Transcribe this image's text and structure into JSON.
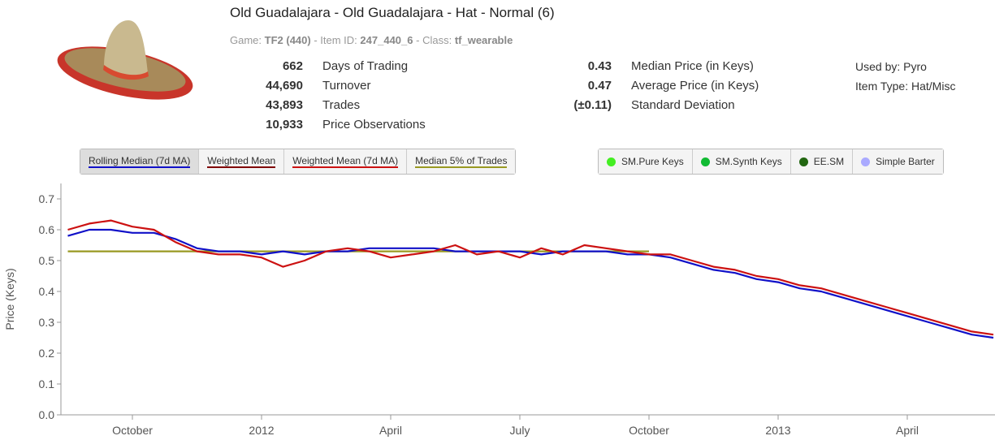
{
  "header": {
    "title": "Old Guadalajara - Old Guadalajara - Hat - Normal (6)",
    "meta": [
      {
        "label": "Game:",
        "value": "TF2 (440)"
      },
      {
        "label": "- Item ID:",
        "value": "247_440_6"
      },
      {
        "label": "- Class:",
        "value": "tf_wearable"
      }
    ]
  },
  "stats": {
    "left": [
      {
        "value": "662",
        "label": "Days of Trading"
      },
      {
        "value": "44,690",
        "label": "Turnover"
      },
      {
        "value": "43,893",
        "label": "Trades"
      },
      {
        "value": "10,933",
        "label": "Price Observations"
      }
    ],
    "middle": [
      {
        "value": "0.43",
        "label": "Median Price (in Keys)"
      },
      {
        "value": "0.47",
        "label": "Average Price (in Keys)"
      },
      {
        "value": "(±0.11)",
        "label": "Standard Deviation"
      }
    ],
    "right": [
      "Used by: Pyro",
      "Item Type: Hat/Misc"
    ]
  },
  "sources": [
    {
      "name": "SM.Pure Keys",
      "color": "#44ee22"
    },
    {
      "name": "SM.Synth Keys",
      "color": "#11bb33"
    },
    {
      "name": "EE.SM",
      "color": "#226611"
    },
    {
      "name": "Simple Barter",
      "color": "#aaaaff"
    }
  ],
  "chart_data": {
    "type": "line",
    "y_label": "Price (Keys)",
    "categories": [
      null,
      null,
      null,
      "October",
      null,
      null,
      null,
      null,
      null,
      "2012",
      null,
      null,
      null,
      null,
      null,
      "April",
      null,
      null,
      null,
      null,
      null,
      "July",
      null,
      null,
      null,
      null,
      null,
      "October",
      null,
      null,
      null,
      null,
      null,
      "2013",
      null,
      null,
      null,
      null,
      null,
      "April",
      null,
      null,
      null,
      null
    ],
    "ylim": [
      0,
      0.75
    ],
    "yticks": [
      {
        "value": 0,
        "label": "0.0"
      },
      0.1,
      0.2,
      0.3,
      0.4,
      0.5,
      0.6,
      0.7
    ],
    "grid": false,
    "series": [
      {
        "name": "Rolling Median (7d MA)",
        "color": "#1010c8",
        "values": [
          0.58,
          0.6,
          0.6,
          0.59,
          0.59,
          0.57,
          0.54,
          0.53,
          0.53,
          0.52,
          0.53,
          0.52,
          0.53,
          0.53,
          0.54,
          0.54,
          0.54,
          0.54,
          0.53,
          0.53,
          0.53,
          0.53,
          0.52,
          0.53,
          0.53,
          0.53,
          0.52,
          0.52,
          0.51,
          0.49,
          0.47,
          0.46,
          0.44,
          0.43,
          0.41,
          0.4,
          0.38,
          0.36,
          0.34,
          0.32,
          0.3,
          0.28,
          0.26,
          0.25
        ]
      },
      {
        "name": "Weighted Mean",
        "color": "#800000",
        "values": [
          null,
          null,
          null,
          null,
          null,
          null,
          null,
          null,
          null,
          null,
          null,
          null,
          null,
          null,
          null,
          null,
          null,
          null,
          null,
          null,
          null,
          null,
          null,
          null,
          null,
          null,
          null,
          null,
          null,
          null,
          null,
          null,
          null,
          null,
          null,
          null,
          null,
          null,
          null,
          null,
          null,
          null,
          null,
          null
        ]
      },
      {
        "name": "Weighted Mean (7d MA)",
        "color": "#cc1111",
        "values": [
          0.6,
          0.62,
          0.63,
          0.61,
          0.6,
          0.56,
          0.53,
          0.52,
          0.52,
          0.51,
          0.48,
          0.5,
          0.53,
          0.54,
          0.53,
          0.51,
          0.52,
          0.53,
          0.55,
          0.52,
          0.53,
          0.51,
          0.54,
          0.52,
          0.55,
          0.54,
          0.53,
          0.52,
          0.52,
          0.5,
          0.48,
          0.47,
          0.45,
          0.44,
          0.42,
          0.41,
          0.39,
          0.37,
          0.35,
          0.33,
          0.31,
          0.29,
          0.27,
          0.26
        ]
      },
      {
        "name": "Median 5% of Trades",
        "color": "#999922",
        "values": [
          0.53,
          0.53,
          0.53,
          0.53,
          0.53,
          0.53,
          0.53,
          0.53,
          0.53,
          0.53,
          0.53,
          0.53,
          0.53,
          0.53,
          0.53,
          0.53,
          0.53,
          0.53,
          0.53,
          0.53,
          0.53,
          0.53,
          0.53,
          0.53,
          0.53,
          0.53,
          0.53,
          0.53,
          null,
          null,
          null,
          null,
          null,
          null,
          null,
          null,
          null,
          null,
          null,
          null,
          null,
          null,
          null,
          null
        ]
      }
    ]
  }
}
